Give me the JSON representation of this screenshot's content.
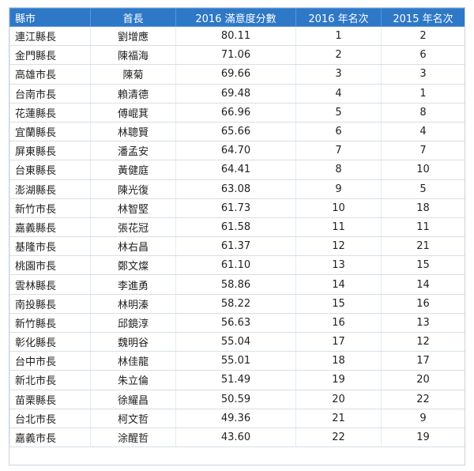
{
  "table": {
    "headers": [
      "縣市",
      "首長",
      "2016 滿意度分數",
      "2016 年名次",
      "2015 年名次"
    ],
    "rows": [
      [
        "連江縣長",
        "劉增應",
        "80.11",
        "1",
        "2"
      ],
      [
        "金門縣長",
        "陳福海",
        "71.06",
        "2",
        "6"
      ],
      [
        "高雄市長",
        "陳菊",
        "69.66",
        "3",
        "3"
      ],
      [
        "台南市長",
        "賴清德",
        "69.48",
        "4",
        "1"
      ],
      [
        "花蓮縣長",
        "傅崐萁",
        "66.96",
        "5",
        "8"
      ],
      [
        "宜蘭縣長",
        "林聰賢",
        "65.66",
        "6",
        "4"
      ],
      [
        "屏東縣長",
        "潘孟安",
        "64.70",
        "7",
        "7"
      ],
      [
        "台東縣長",
        "黃健庭",
        "64.41",
        "8",
        "10"
      ],
      [
        "澎湖縣長",
        "陳光復",
        "63.08",
        "9",
        "5"
      ],
      [
        "新竹市長",
        "林智堅",
        "61.73",
        "10",
        "18"
      ],
      [
        "嘉義縣長",
        "張花冠",
        "61.58",
        "11",
        "11"
      ],
      [
        "基隆市長",
        "林右昌",
        "61.37",
        "12",
        "21"
      ],
      [
        "桃園市長",
        "鄭文燦",
        "61.10",
        "13",
        "15"
      ],
      [
        "雲林縣長",
        "李進勇",
        "58.86",
        "14",
        "14"
      ],
      [
        "南投縣長",
        "林明溱",
        "58.22",
        "15",
        "16"
      ],
      [
        "新竹縣長",
        "邱鏡淳",
        "56.63",
        "16",
        "13"
      ],
      [
        "彰化縣長",
        "魏明谷",
        "55.04",
        "17",
        "12"
      ],
      [
        "台中市長",
        "林佳龍",
        "55.01",
        "18",
        "17"
      ],
      [
        "新北市長",
        "朱立倫",
        "51.49",
        "19",
        "20"
      ],
      [
        "苗栗縣長",
        "徐耀昌",
        "50.59",
        "20",
        "22"
      ],
      [
        "台北市長",
        "柯文哲",
        "49.36",
        "21",
        "9"
      ],
      [
        "嘉義市長",
        "涂醒哲",
        "43.60",
        "22",
        "19"
      ]
    ]
  }
}
